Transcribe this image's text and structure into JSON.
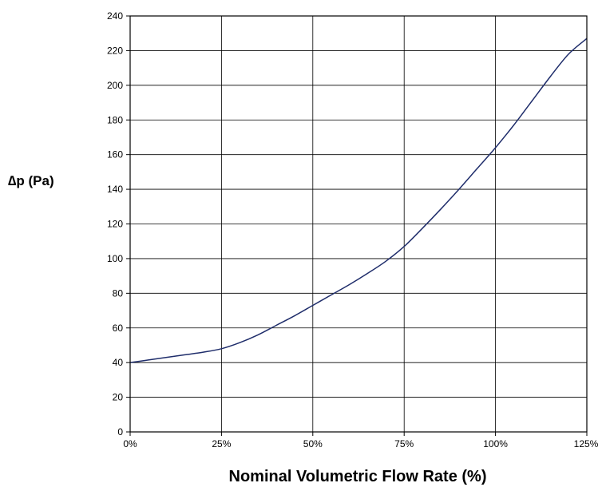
{
  "chart_data": {
    "type": "line",
    "title": "",
    "xlabel": "Nominal Volumetric Flow Rate (%)",
    "ylabel": "∆p (Pa)",
    "x_tick_labels": [
      "0%",
      "25%",
      "50%",
      "75%",
      "100%",
      "125%"
    ],
    "y_tick_labels": [
      "0",
      "20",
      "40",
      "60",
      "80",
      "100",
      "120",
      "140",
      "160",
      "180",
      "200",
      "220",
      "240"
    ],
    "xlim": [
      0,
      125
    ],
    "ylim": [
      0,
      240
    ],
    "grid": true,
    "legend": "none",
    "line_color": "#1f2d6b",
    "series": [
      {
        "x": [
          0,
          5,
          10,
          15,
          20,
          25,
          30,
          35,
          40,
          45,
          50,
          55,
          60,
          65,
          70,
          75,
          80,
          85,
          90,
          95,
          100,
          105,
          110,
          115,
          120,
          125
        ],
        "y": [
          40,
          41.5,
          43,
          44.5,
          46,
          48,
          51.5,
          56,
          61.5,
          67,
          73,
          79,
          85,
          91.5,
          98.5,
          107,
          117.5,
          128.5,
          140,
          152,
          164,
          177,
          191,
          205,
          218,
          227
        ]
      }
    ]
  }
}
